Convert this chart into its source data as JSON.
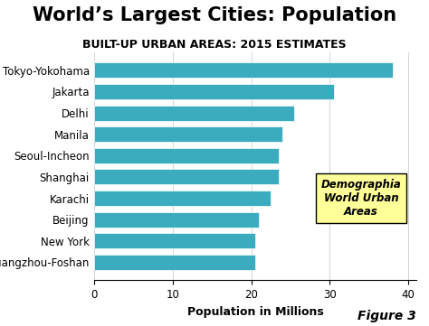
{
  "title": "World’s Largest Cities: Population",
  "subtitle": "BUILT-UP URBAN AREAS: 2015 ESTIMATES",
  "cities": [
    "Tokyo-Yokohama",
    "Jakarta",
    "Delhi",
    "Manila",
    "Seoul-Incheon",
    "Shanghai",
    "Karachi",
    "Beijing",
    "New York",
    "Guangzhou-Foshan"
  ],
  "values": [
    38,
    30.5,
    25.5,
    24,
    23.5,
    23.5,
    22.5,
    21,
    20.5,
    20.5
  ],
  "bar_color": "#3AACBE",
  "xlabel": "Population in Millions",
  "xlim": [
    0,
    41
  ],
  "xticks": [
    0,
    10,
    20,
    30,
    40
  ],
  "annotation_text": "Demographia\nWorld Urban\nAreas",
  "annotation_bg": "#FFFF99",
  "figure_label": "Figure 3",
  "title_fontsize": 15,
  "subtitle_fontsize": 9,
  "xlabel_fontsize": 9,
  "tick_fontsize": 8.5,
  "city_fontsize": 8.5
}
